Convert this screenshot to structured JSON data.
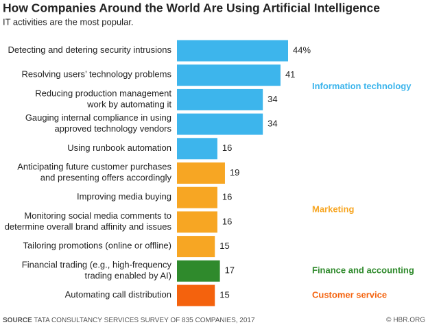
{
  "chart_data": {
    "type": "bar",
    "title": "How Companies Around the World Are Using Artificial Intelligence",
    "subtitle": "IT activities are the most popular.",
    "categories": [
      [
        "Detecting and detering security intrusions"
      ],
      [
        "Resolving users’ technology problems"
      ],
      [
        "Reducing production management",
        "work by automating it"
      ],
      [
        "Gauging internal compliance in using",
        "approved technology vendors"
      ],
      [
        "Using runbook automation"
      ],
      [
        "Anticipating future customer purchases",
        "and presenting offers accordingly"
      ],
      [
        "Improving media buying"
      ],
      [
        "Monitoring social media comments to",
        "determine overall brand affinity and issues"
      ],
      [
        "Tailoring promotions (online or offline)"
      ],
      [
        "Financial trading (e.g., high-frequency",
        "trading enabled by AI)"
      ],
      [
        "Automating call distribution"
      ]
    ],
    "series": [
      {
        "name": "Information technology",
        "color": "#3db5ec",
        "values": [
          44,
          41,
          34,
          34,
          16,
          null,
          null,
          null,
          null,
          null,
          null
        ],
        "value_labels": [
          "44%",
          "41",
          "34",
          "34",
          "16",
          null,
          null,
          null,
          null,
          null,
          null
        ]
      },
      {
        "name": "Marketing",
        "color": "#f7a623",
        "values": [
          null,
          null,
          null,
          null,
          null,
          19,
          16,
          16,
          15,
          null,
          null
        ]
      },
      {
        "name": "Finance and accounting",
        "color": "#2f8a2c",
        "values": [
          null,
          null,
          null,
          null,
          null,
          null,
          null,
          null,
          null,
          17,
          null
        ]
      },
      {
        "name": "Customer service",
        "color": "#f4620d",
        "values": [
          null,
          null,
          null,
          null,
          null,
          null,
          null,
          null,
          null,
          null,
          15
        ]
      }
    ],
    "source": {
      "label": "SOURCE",
      "text": "TATA CONSULTANCY SERVICES SURVEY OF 835 COMPANIES, 2017"
    },
    "credit": "© HBR.ORG"
  }
}
